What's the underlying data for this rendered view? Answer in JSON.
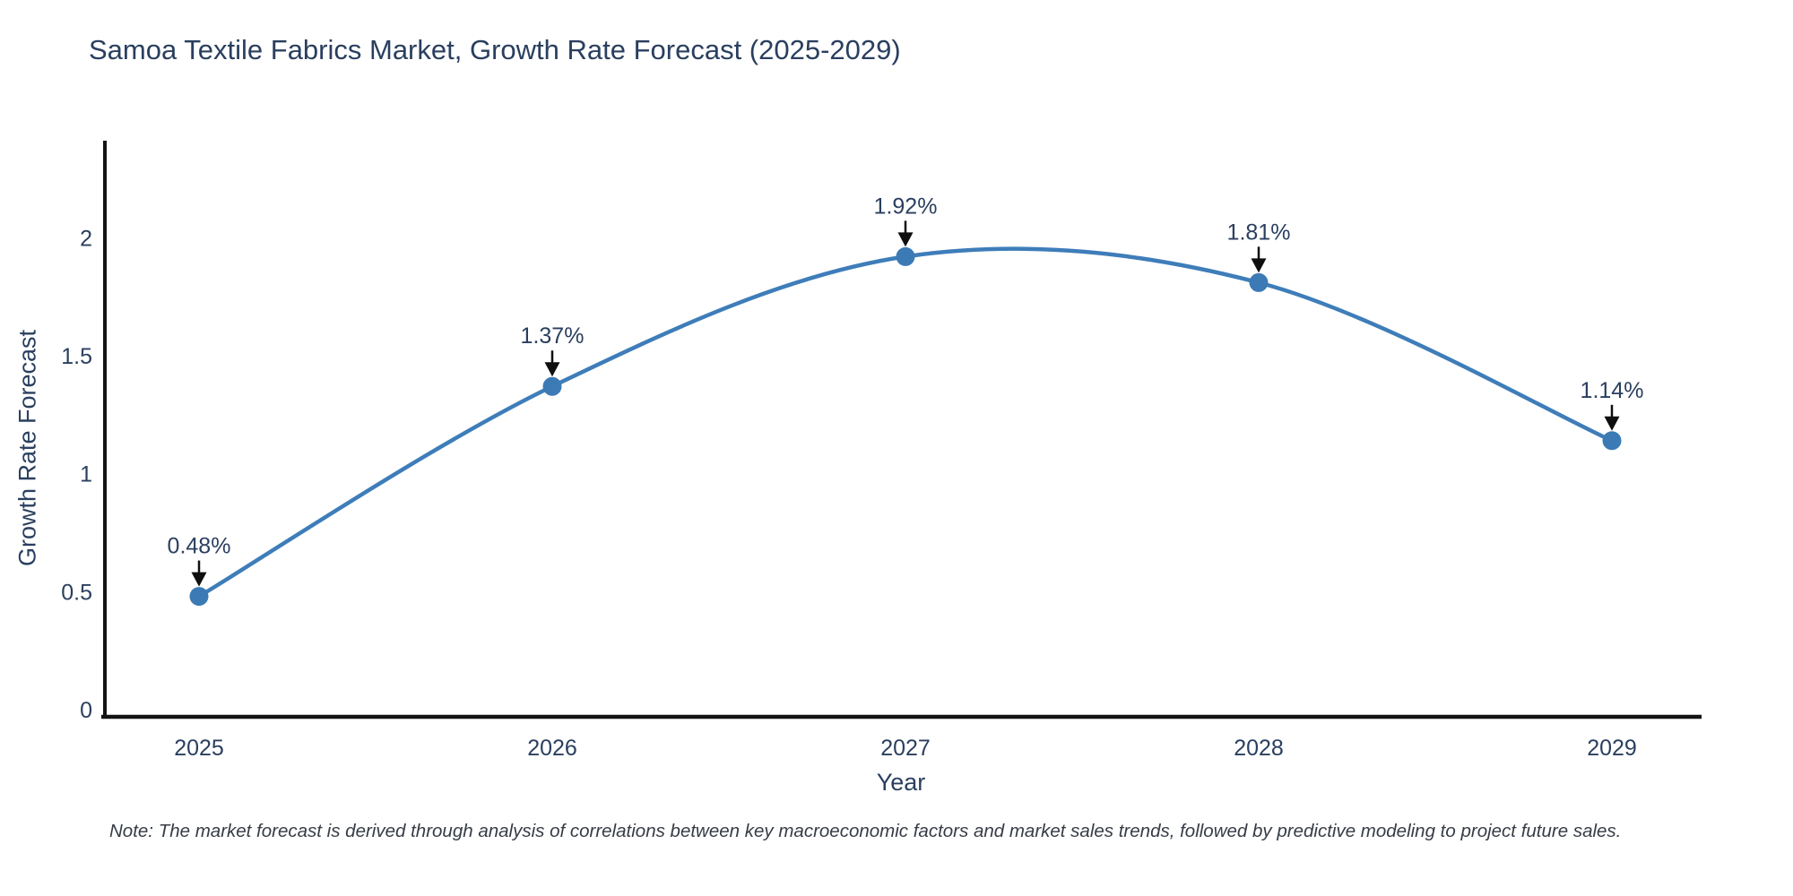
{
  "page": {
    "background": "#ffffff"
  },
  "chart_data": {
    "type": "line",
    "title": "Samoa Textile Fabrics Market, Growth Rate Forecast (2025-2029)",
    "xlabel": "Year",
    "ylabel": "Growth Rate Forecast",
    "x": [
      2025,
      2026,
      2027,
      2028,
      2029
    ],
    "series": [
      {
        "name": "Growth Rate Forecast",
        "values": [
          0.48,
          1.37,
          1.92,
          1.81,
          1.14
        ],
        "point_labels": [
          "0.48%",
          "1.37%",
          "1.92%",
          "1.81%",
          "1.14%"
        ],
        "line_shape": "spline",
        "line_color": "#3e7db9",
        "marker_color": "#3c7ab5"
      }
    ],
    "xticks": [
      "2025",
      "2026",
      "2027",
      "2028",
      "2029"
    ],
    "yticks": [
      "0",
      "0.5",
      "1",
      "1.5",
      "2"
    ],
    "ytick_values": [
      0,
      0.5,
      1,
      1.5,
      2
    ],
    "ylim": [
      -0.03,
      2.44
    ],
    "grid": false,
    "legend_position": "none",
    "annotations_have_arrows": true,
    "colors": {
      "text": "#2a3f5f",
      "axis_line": "#131313",
      "arrow": "#0f0f0f",
      "background": "#ffffff"
    }
  },
  "note": {
    "text": "Note: The market forecast is derived through analysis of correlations between key macroeconomic factors and market sales trends, followed by predictive modeling to project future sales."
  }
}
